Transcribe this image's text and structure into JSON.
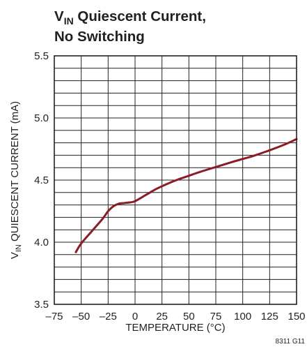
{
  "chart_data": {
    "type": "line",
    "title": {
      "line1_main": "V",
      "line1_sub": "IN",
      "line1_rest": " Quiescent Current,",
      "line2": "No Switching"
    },
    "xlabel": "TEMPERATURE (°C)",
    "ylabel": {
      "main": "V",
      "sub": "IN",
      "rest": " QUIESCENT CURRENT (mA)"
    },
    "xlim": [
      -75,
      150
    ],
    "ylim": [
      3.5,
      5.5
    ],
    "x_ticks": [
      -75,
      -50,
      -25,
      0,
      25,
      50,
      75,
      100,
      125,
      150
    ],
    "x_tick_labels": [
      "–75",
      "–50",
      "–25",
      "0",
      "25",
      "50",
      "75",
      "100",
      "125",
      "150"
    ],
    "y_ticks": [
      3.5,
      4.0,
      4.5,
      5.0,
      5.5
    ],
    "y_tick_labels": [
      "3.5",
      "4.0",
      "4.5",
      "5.0",
      "5.5"
    ],
    "grid": true,
    "series": [
      {
        "color": "#8b1c25",
        "x": [
          -55,
          -50,
          -40,
          -30,
          -25,
          -20,
          -15,
          -10,
          -5,
          0,
          10,
          20,
          30,
          40,
          50,
          60,
          75,
          90,
          100,
          110,
          125,
          140,
          150
        ],
        "y": [
          3.92,
          3.99,
          4.09,
          4.19,
          4.25,
          4.29,
          4.31,
          4.315,
          4.32,
          4.33,
          4.38,
          4.43,
          4.47,
          4.505,
          4.535,
          4.565,
          4.605,
          4.645,
          4.67,
          4.695,
          4.74,
          4.79,
          4.83
        ]
      }
    ],
    "figure_id": "8311 G11"
  }
}
